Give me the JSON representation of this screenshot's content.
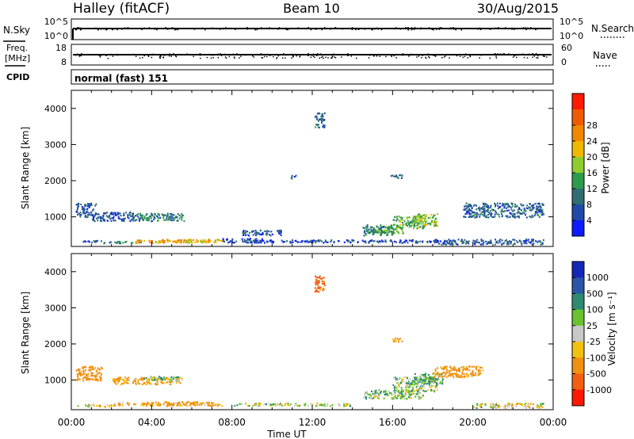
{
  "header": {
    "station": "Halley (fitACF)",
    "beam": "Beam 10",
    "date": "30/Aug/2015"
  },
  "top_panels": {
    "nsky_label": "N.Sky",
    "nsky_ticks": [
      "10^5",
      "10^0"
    ],
    "nsearch_label": "N.Search",
    "nsearch_ticks": [
      "10^5",
      "10^0"
    ],
    "freq_label": "Freq.",
    "freq_unit": "[MHz]",
    "freq_ticks": [
      "18",
      "8"
    ],
    "nave_label": "Nave",
    "nave_ticks": [
      "60",
      "0"
    ],
    "cpid_label": "CPID",
    "cpid_value": "normal (fast) 151"
  },
  "xaxis": {
    "label": "Time UT",
    "ticks": [
      "00:00",
      "04:00",
      "08:00",
      "12:00",
      "16:00",
      "20:00",
      "00:00"
    ],
    "range_hours": [
      0,
      24
    ]
  },
  "power_panel": {
    "ylabel": "Slant Range [km]",
    "yticks": [
      "1000",
      "2000",
      "3000",
      "4000"
    ],
    "colorbar_label": "Power [dB]",
    "colorbar_ticks": [
      "4",
      "8",
      "12",
      "16",
      "20",
      "24",
      "28"
    ],
    "colors": [
      "#0c1cff",
      "#214aa8",
      "#2e6e74",
      "#2e9a4e",
      "#8fcc2e",
      "#f0b800",
      "#f08800",
      "#f05a00",
      "#ff1a00"
    ]
  },
  "velocity_panel": {
    "ylabel": "Slant Range [km]",
    "yticks": [
      "1000",
      "2000",
      "3000",
      "4000"
    ],
    "colorbar_label": "Velocity [m s⁻¹]",
    "colorbar_ticks": [
      "1000",
      "500",
      "100",
      "25",
      "-25",
      "-100",
      "-500",
      "-1000"
    ],
    "colors": [
      "#1428b8",
      "#2a55a8",
      "#2e8a72",
      "#6ac22e",
      "#c8c8c8",
      "#f2c010",
      "#f09010",
      "#f06010",
      "#ff1800"
    ]
  },
  "chart_data": [
    {
      "type": "heatmap",
      "title": "Power",
      "xlabel": "Time UT",
      "ylabel": "Slant Range [km]",
      "xlim": [
        0,
        24
      ],
      "ylim": [
        180,
        4500
      ],
      "colorbar": "Power [dB]",
      "clim": [
        0,
        30
      ],
      "regions": [
        {
          "t": [
            0.3,
            1.5
          ],
          "r": [
            300,
            360
          ],
          "v": 6
        },
        {
          "t": [
            1.5,
            3.5
          ],
          "r": [
            280,
            340
          ],
          "v": 9
        },
        {
          "t": [
            3.0,
            5.5
          ],
          "r": [
            300,
            380
          ],
          "v": 20
        },
        {
          "t": [
            4.5,
            7.5
          ],
          "r": [
            310,
            390
          ],
          "v": 22
        },
        {
          "t": [
            5.5,
            7.3
          ],
          "r": [
            300,
            400
          ],
          "v": 18
        },
        {
          "t": [
            1.0,
            3.2
          ],
          "r": [
            900,
            1150
          ],
          "v": 6
        },
        {
          "t": [
            3.0,
            5.6
          ],
          "r": [
            900,
            1120
          ],
          "v": 9
        },
        {
          "t": [
            0.2,
            1.2
          ],
          "r": [
            1000,
            1400
          ],
          "v": 6
        },
        {
          "t": [
            7.5,
            9.5
          ],
          "r": [
            300,
            420
          ],
          "v": 5
        },
        {
          "t": [
            8.5,
            10.5
          ],
          "r": [
            500,
            650
          ],
          "v": 6
        },
        {
          "t": [
            12.1,
            12.6
          ],
          "r": [
            3450,
            3900
          ],
          "v": 7
        },
        {
          "t": [
            10.9,
            11.2
          ],
          "r": [
            2080,
            2180
          ],
          "v": 7
        },
        {
          "t": [
            15.9,
            16.5
          ],
          "r": [
            2080,
            2180
          ],
          "v": 7
        },
        {
          "t": [
            14.5,
            16.0
          ],
          "r": [
            500,
            800
          ],
          "v": 9
        },
        {
          "t": [
            15.0,
            16.5
          ],
          "r": [
            550,
            750
          ],
          "v": 12
        },
        {
          "t": [
            16.0,
            17.6
          ],
          "r": [
            700,
            1050
          ],
          "v": 13
        },
        {
          "t": [
            17.0,
            18.2
          ],
          "r": [
            750,
            1100
          ],
          "v": 15
        },
        {
          "t": [
            18.0,
            23.5
          ],
          "r": [
            250,
            400
          ],
          "v": 6
        },
        {
          "t": [
            19.5,
            23.5
          ],
          "r": [
            1000,
            1400
          ],
          "v": 7
        },
        {
          "t": [
            8.5,
            18.0
          ],
          "r": [
            300,
            380
          ],
          "v": 5
        }
      ]
    },
    {
      "type": "heatmap",
      "title": "Velocity",
      "xlabel": "Time UT",
      "ylabel": "Slant Range [km]",
      "xlim": [
        0,
        24
      ],
      "ylim": [
        180,
        4500
      ],
      "colorbar": "Velocity [m s⁻¹]",
      "clim": [
        -1000,
        1000
      ],
      "regions": [
        {
          "t": [
            0.3,
            2.0
          ],
          "r": [
            280,
            360
          ],
          "v": -50
        },
        {
          "t": [
            2.0,
            7.5
          ],
          "r": [
            300,
            400
          ],
          "v": -120
        },
        {
          "t": [
            3.5,
            6.5
          ],
          "r": [
            330,
            420
          ],
          "v": -200
        },
        {
          "t": [
            0.2,
            1.5
          ],
          "r": [
            1000,
            1400
          ],
          "v": -300
        },
        {
          "t": [
            2.0,
            5.5
          ],
          "r": [
            900,
            1100
          ],
          "v": -150
        },
        {
          "t": [
            3.5,
            5.5
          ],
          "r": [
            1000,
            1120
          ],
          "v": 80
        },
        {
          "t": [
            12.1,
            12.6
          ],
          "r": [
            3450,
            3900
          ],
          "v": -600
        },
        {
          "t": [
            15.9,
            16.5
          ],
          "r": [
            2080,
            2180
          ],
          "v": -150
        },
        {
          "t": [
            14.5,
            17.5
          ],
          "r": [
            500,
            750
          ],
          "v": 60
        },
        {
          "t": [
            16.0,
            18.2
          ],
          "r": [
            700,
            1100
          ],
          "v": 40
        },
        {
          "t": [
            17.0,
            18.5
          ],
          "r": [
            900,
            1200
          ],
          "v": 120
        },
        {
          "t": [
            18.0,
            20.5
          ],
          "r": [
            1100,
            1400
          ],
          "v": -200
        },
        {
          "t": [
            20.0,
            23.5
          ],
          "r": [
            250,
            380
          ],
          "v": -10
        },
        {
          "t": [
            8.0,
            14.0
          ],
          "r": [
            300,
            380
          ],
          "v": 10
        }
      ]
    }
  ]
}
